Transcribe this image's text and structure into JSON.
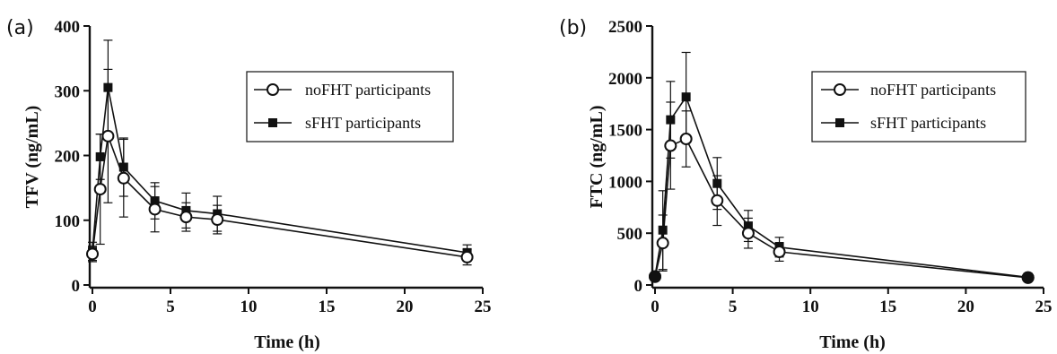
{
  "chart_data": [
    {
      "type": "line",
      "panel_label": "(a)",
      "xlabel": "Time (h)",
      "ylabel": "TFV (ng/mL)",
      "xlim": [
        0,
        25
      ],
      "ylim": [
        0,
        400
      ],
      "xticks": [
        0,
        5,
        10,
        15,
        20,
        25
      ],
      "yticks": [
        0,
        100,
        200,
        300,
        400
      ],
      "legend_position": "top-right",
      "grid": false,
      "series": [
        {
          "name": "noFHT participants",
          "marker": "open-circle",
          "x": [
            0,
            0.5,
            1,
            2,
            4,
            6,
            8,
            24
          ],
          "y": [
            48,
            148,
            230,
            165,
            117,
            105,
            101,
            43
          ],
          "err": [
            12,
            85,
            103,
            60,
            35,
            22,
            22,
            12
          ]
        },
        {
          "name": "sFHT participants",
          "marker": "filled-square",
          "x": [
            0,
            0.5,
            1,
            2,
            4,
            6,
            8,
            24
          ],
          "y": [
            52,
            198,
            305,
            182,
            130,
            115,
            110,
            50
          ],
          "err": [
            14,
            35,
            73,
            45,
            28,
            27,
            27,
            12
          ]
        }
      ]
    },
    {
      "type": "line",
      "panel_label": "(b)",
      "xlabel": "Time (h)",
      "ylabel": "FTC (ng/mL)",
      "xlim": [
        0,
        25
      ],
      "ylim": [
        0,
        2500
      ],
      "xticks": [
        0,
        5,
        10,
        15,
        20,
        25
      ],
      "yticks": [
        0,
        500,
        1000,
        1500,
        2000,
        2500
      ],
      "legend_position": "top-right",
      "grid": false,
      "series": [
        {
          "name": "noFHT participants",
          "marker": "open-circle",
          "x": [
            0,
            0.5,
            1,
            2,
            4,
            6,
            8,
            24
          ],
          "y": [
            80,
            405,
            1345,
            1410,
            815,
            500,
            320,
            70
          ],
          "err": [
            15,
            270,
            420,
            270,
            240,
            145,
            90,
            12
          ]
        },
        {
          "name": "sFHT participants",
          "marker": "filled-square",
          "x": [
            0,
            0.5,
            1,
            2,
            4,
            6,
            8,
            24
          ],
          "y": [
            85,
            530,
            1595,
            1815,
            980,
            570,
            365,
            75
          ],
          "err": [
            15,
            380,
            370,
            430,
            250,
            150,
            95,
            12
          ]
        }
      ]
    }
  ]
}
